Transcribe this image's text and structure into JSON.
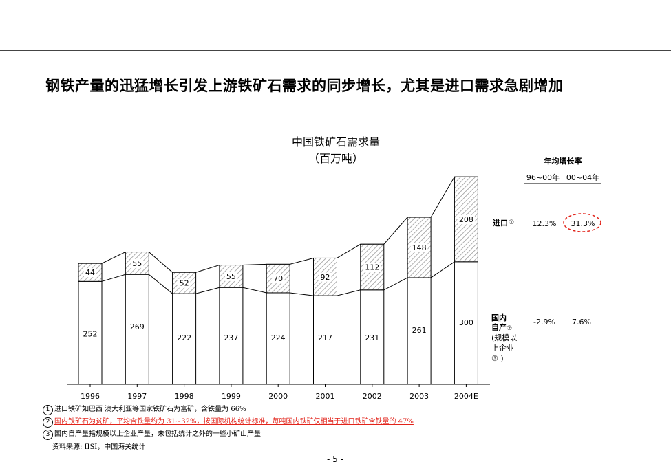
{
  "headline": "钢铁产量的迅猛增长引发上游铁矿石需求的同步增长，尤其是进口需求急剧增加",
  "chart_data": {
    "type": "bar",
    "stacked": true,
    "title": "中国铁矿石需求量",
    "subtitle": "（百万吨）",
    "categories": [
      "1996",
      "1997",
      "1998",
      "1999",
      "2000",
      "2001",
      "2002",
      "2003",
      "2004E"
    ],
    "series": [
      {
        "name": "国内自产②(规模以上企业③)",
        "values": [
          252,
          269,
          222,
          237,
          224,
          217,
          231,
          261,
          300
        ],
        "fill": "#ffffff"
      },
      {
        "name": "进口①",
        "values": [
          44,
          55,
          52,
          55,
          70,
          92,
          112,
          148,
          208
        ],
        "fill": "hatch"
      }
    ],
    "series_labels": {
      "import": "进口",
      "import_mark": "①",
      "domestic_line1": "国内",
      "domestic_line2": "自产",
      "domestic_mark": "②",
      "domestic_note_line1": "(规模以",
      "domestic_note_line2": "上企业",
      "domestic_note_line3": "③ )"
    },
    "growth_table": {
      "title": "年均增长率",
      "columns": [
        "96~00年",
        "00~04年"
      ],
      "rows": [
        {
          "series": "进口",
          "values": [
            "12.3%",
            "31.3%"
          ],
          "highlight_index": 1
        },
        {
          "series": "国内自产",
          "values": [
            "-2.9%",
            "7.6%"
          ]
        }
      ],
      "highlight_color": "#e2231a"
    },
    "ylim": [
      0,
      520
    ],
    "grid": false,
    "connector_lines": true
  },
  "footnotes": [
    {
      "num": "1",
      "text": "进口铁矿如巴西 澳大利亚等国家铁矿石为富矿，含铁量为 66%",
      "red": false
    },
    {
      "num": "2",
      "text": "国内铁矿石为贫矿，平均含铁量约为 31~32%，按国际机构统计标准，每吨国内铁矿仅相当于进口铁矿含铁量的  47%",
      "red": true
    },
    {
      "num": "3",
      "text": "国内自产量指规模以上企业产量，未包括统计之外的一些小矿山产量",
      "red": false
    }
  ],
  "source": "资料来源: IISI，中国海关统计",
  "page_number": "- 5 -",
  "colors": {
    "text": "#000000",
    "hatch": "#9a9a9a",
    "axis": "#000000",
    "rule": "#444444",
    "red": "#e2231a"
  }
}
